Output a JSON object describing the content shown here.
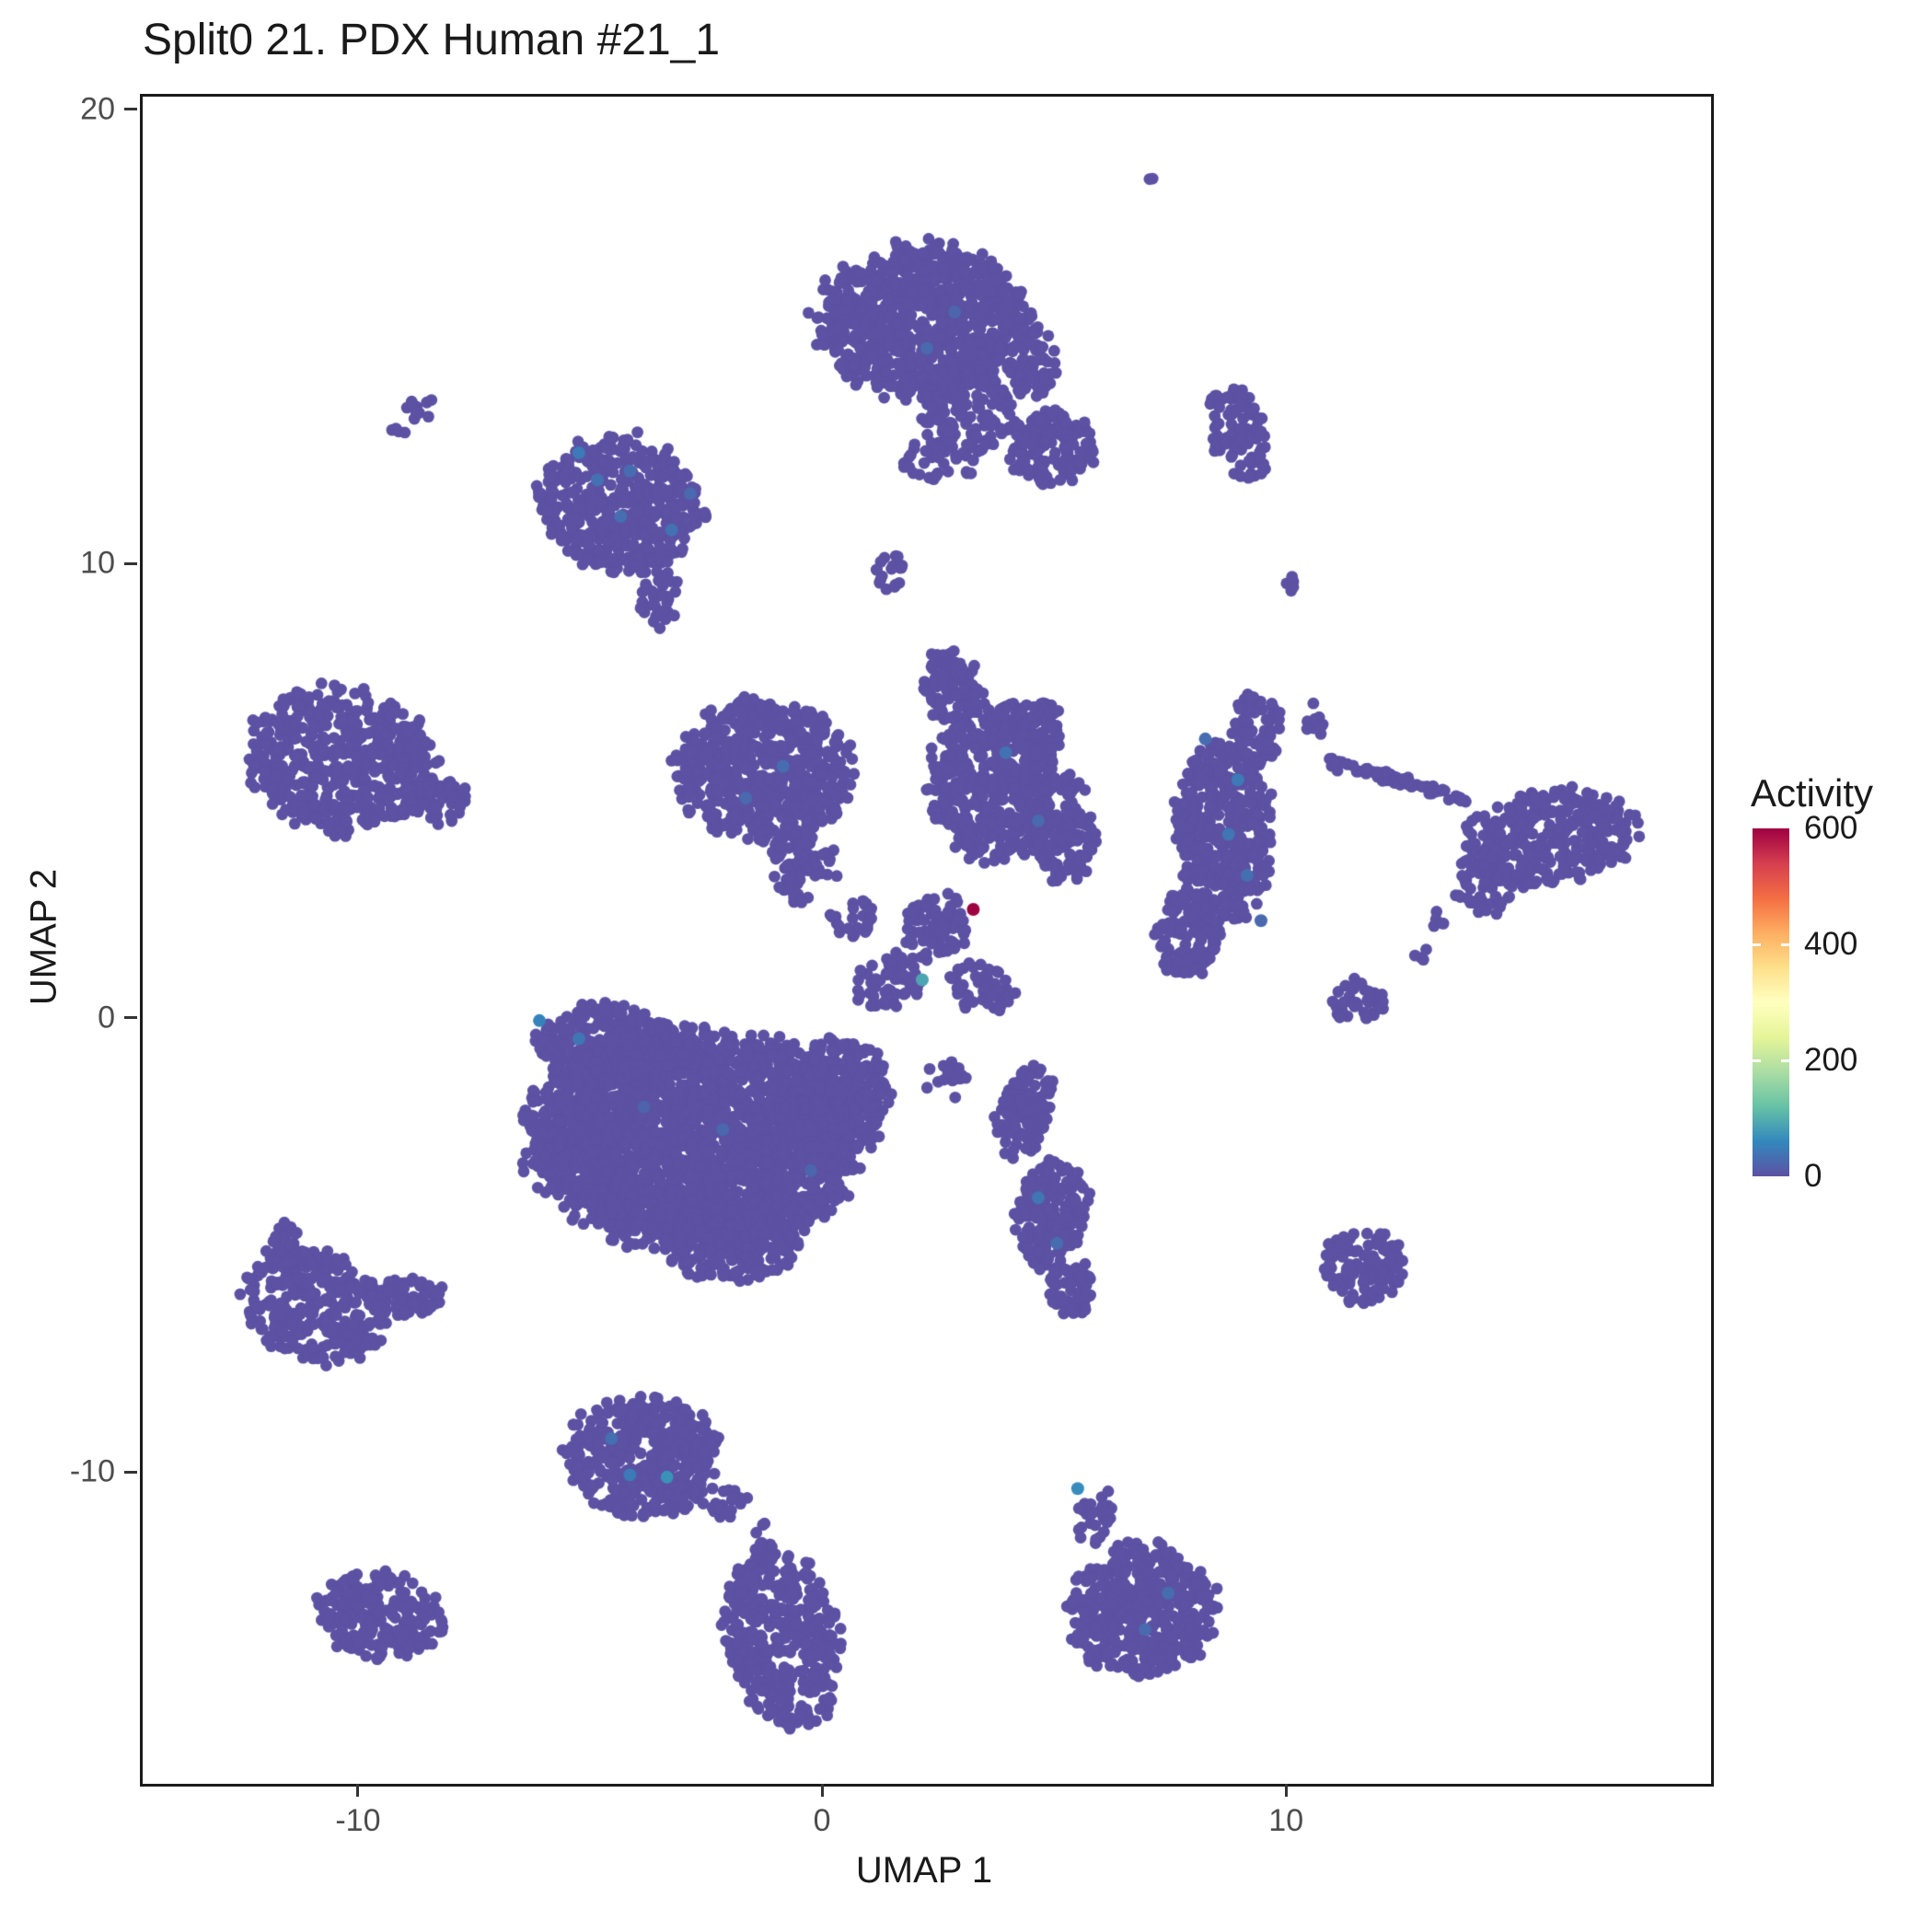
{
  "figure": {
    "title": "Split0 21. PDX Human #21_1"
  },
  "chart_data": {
    "type": "scatter",
    "title": "Split0 21. PDX Human #21_1",
    "xlabel": "UMAP 1",
    "ylabel": "UMAP 2",
    "xlim": [
      -14.7,
      19.1
    ],
    "ylim": [
      -16.8,
      20.34
    ],
    "x_ticks": [
      -10,
      0,
      10
    ],
    "y_ticks": [
      20,
      10,
      0,
      -10
    ],
    "grid": false,
    "panel_border_color": "#1a1a1a",
    "point_color": "#5C51A3",
    "point_radius": 6.4,
    "highlight_radius": 7,
    "legend": {
      "title": "Activity",
      "position": "right",
      "range": [
        0,
        600
      ],
      "ticks": [
        600,
        400,
        200,
        0
      ]
    },
    "colormap": [
      {
        "t": 0.0,
        "color": "#5C51A3"
      },
      {
        "t": 0.1,
        "color": "#3288BD"
      },
      {
        "t": 0.2,
        "color": "#66C2A5"
      },
      {
        "t": 0.3,
        "color": "#ABDDA4"
      },
      {
        "t": 0.4,
        "color": "#E6F598"
      },
      {
        "t": 0.5,
        "color": "#FFFFBF"
      },
      {
        "t": 0.6,
        "color": "#FEE08B"
      },
      {
        "t": 0.7,
        "color": "#FDAE61"
      },
      {
        "t": 0.8,
        "color": "#F46D43"
      },
      {
        "t": 0.9,
        "color": "#D53E4F"
      },
      {
        "t": 1.0,
        "color": "#9E0142"
      }
    ],
    "clusters": [
      {
        "n": 2,
        "x": 7.1,
        "y": 18.6,
        "rx": 0.18,
        "ry": 0.18,
        "rot": 0
      },
      {
        "n": 900,
        "x": 2.1,
        "y": 15.4,
        "rx": 2.3,
        "ry": 1.7,
        "rot": 0
      },
      {
        "n": 160,
        "x": 3.1,
        "y": 13.4,
        "rx": 1.0,
        "ry": 1.0,
        "rot": 0
      },
      {
        "n": 60,
        "x": 4.5,
        "y": 14.5,
        "rx": 0.55,
        "ry": 0.8,
        "rot": 0
      },
      {
        "n": 30,
        "x": 2.5,
        "y": 12.3,
        "rx": 0.9,
        "ry": 0.5,
        "rot": 0
      },
      {
        "n": 150,
        "x": 4.9,
        "y": 12.6,
        "rx": 0.95,
        "ry": 0.8,
        "rot": 0
      },
      {
        "n": 90,
        "x": 8.9,
        "y": 12.9,
        "rx": 0.6,
        "ry": 1.1,
        "rot": 15
      },
      {
        "n": 10,
        "x": -8.6,
        "y": 13.4,
        "rx": 0.45,
        "ry": 0.3,
        "rot": -20
      },
      {
        "n": 4,
        "x": -9.2,
        "y": 13.0,
        "rx": 0.18,
        "ry": 0.15,
        "rot": 0
      },
      {
        "n": 480,
        "x": -4.4,
        "y": 11.4,
        "rx": 1.75,
        "ry": 1.5,
        "rot": -15
      },
      {
        "n": 40,
        "x": -3.6,
        "y": 9.4,
        "rx": 0.45,
        "ry": 0.75,
        "rot": 0
      },
      {
        "n": 18,
        "x": 1.4,
        "y": 9.9,
        "rx": 0.35,
        "ry": 0.55,
        "rot": 20
      },
      {
        "n": 5,
        "x": 10.1,
        "y": 9.6,
        "rx": 0.2,
        "ry": 0.25,
        "rot": 0
      },
      {
        "n": 560,
        "x": -10.4,
        "y": 5.7,
        "rx": 2.1,
        "ry": 1.6,
        "rot": -10
      },
      {
        "n": 40,
        "x": -8.2,
        "y": 4.8,
        "rx": 0.55,
        "ry": 0.5,
        "rot": 0
      },
      {
        "n": 620,
        "x": -1.3,
        "y": 5.5,
        "rx": 1.9,
        "ry": 1.6,
        "rot": 0
      },
      {
        "n": 70,
        "x": -0.6,
        "y": 3.4,
        "rx": 0.55,
        "ry": 0.9,
        "rot": 0
      },
      {
        "n": 480,
        "x": 3.6,
        "y": 5.3,
        "rx": 1.35,
        "ry": 1.8,
        "rot": 0
      },
      {
        "n": 80,
        "x": 2.7,
        "y": 7.4,
        "rx": 0.6,
        "ry": 0.8,
        "rot": 0
      },
      {
        "n": 150,
        "x": 5.1,
        "y": 4.2,
        "rx": 0.75,
        "ry": 1.2,
        "rot": 0
      },
      {
        "n": 60,
        "x": 4.6,
        "y": 6.4,
        "rx": 0.55,
        "ry": 0.65,
        "rot": 0
      },
      {
        "n": 430,
        "x": 8.6,
        "y": 4.2,
        "rx": 1.05,
        "ry": 2.0,
        "rot": 0
      },
      {
        "n": 120,
        "x": 7.8,
        "y": 1.9,
        "rx": 0.7,
        "ry": 1.0,
        "rot": 0
      },
      {
        "n": 70,
        "x": 9.3,
        "y": 6.4,
        "rx": 0.55,
        "ry": 0.85,
        "rot": 0
      },
      {
        "n": 10,
        "x": 10.6,
        "y": 6.6,
        "rx": 0.3,
        "ry": 0.45,
        "rot": 0
      },
      {
        "n": 6,
        "x": 10.9,
        "y": 5.7,
        "rx": 0.18,
        "ry": 0.3,
        "rot": 0
      },
      {
        "n": 60,
        "x": 12.5,
        "y": 5.25,
        "rx": 1.5,
        "ry": 0.13,
        "rot": -17
      },
      {
        "n": 330,
        "x": 15.6,
        "y": 4.0,
        "rx": 1.9,
        "ry": 1.05,
        "rot": 10
      },
      {
        "n": 50,
        "x": 14.2,
        "y": 2.9,
        "rx": 0.65,
        "ry": 0.6,
        "rot": 0
      },
      {
        "n": 5,
        "x": 13.2,
        "y": 2.2,
        "rx": 0.2,
        "ry": 0.2,
        "rot": 0
      },
      {
        "n": 4,
        "x": 12.9,
        "y": 1.4,
        "rx": 0.2,
        "ry": 0.2,
        "rot": 0
      },
      {
        "n": 40,
        "x": 11.5,
        "y": 0.45,
        "rx": 0.6,
        "ry": 0.5,
        "rot": 0
      },
      {
        "n": 2400,
        "x": -2.8,
        "y": -2.6,
        "rx": 3.6,
        "ry": 2.4,
        "rot": 0
      },
      {
        "n": 300,
        "x": -4.7,
        "y": -0.5,
        "rx": 1.5,
        "ry": 0.9,
        "rot": 0
      },
      {
        "n": 250,
        "x": 0.4,
        "y": -1.6,
        "rx": 1.05,
        "ry": 1.25,
        "rot": 0
      },
      {
        "n": 200,
        "x": -2.0,
        "y": -4.9,
        "rx": 1.5,
        "ry": 0.85,
        "rot": 0
      },
      {
        "n": 60,
        "x": 1.4,
        "y": 0.9,
        "rx": 0.9,
        "ry": 0.6,
        "rot": 25
      },
      {
        "n": 80,
        "x": 2.4,
        "y": 2.1,
        "rx": 0.7,
        "ry": 0.7,
        "rot": 0
      },
      {
        "n": 25,
        "x": 0.6,
        "y": 2.3,
        "rx": 0.5,
        "ry": 0.5,
        "rot": 0
      },
      {
        "n": 8,
        "x": 0.1,
        "y": 3.5,
        "rx": 0.22,
        "ry": 0.45,
        "rot": 0
      },
      {
        "n": 50,
        "x": 3.4,
        "y": 0.7,
        "rx": 0.75,
        "ry": 0.55,
        "rot": -20
      },
      {
        "n": 15,
        "x": 2.6,
        "y": -1.3,
        "rx": 0.45,
        "ry": 0.5,
        "rot": 0
      },
      {
        "n": 120,
        "x": 4.3,
        "y": -2.0,
        "rx": 0.6,
        "ry": 1.05,
        "rot": -15
      },
      {
        "n": 200,
        "x": 4.9,
        "y": -4.2,
        "rx": 0.75,
        "ry": 1.25,
        "rot": -10
      },
      {
        "n": 60,
        "x": 5.3,
        "y": -5.9,
        "rx": 0.5,
        "ry": 0.65,
        "rot": 0
      },
      {
        "n": 290,
        "x": -11.0,
        "y": -6.3,
        "rx": 1.55,
        "ry": 1.2,
        "rot": -20
      },
      {
        "n": 60,
        "x": -9.0,
        "y": -6.1,
        "rx": 0.85,
        "ry": 0.45,
        "rot": 10
      },
      {
        "n": 30,
        "x": -11.7,
        "y": -4.9,
        "rx": 0.4,
        "ry": 0.5,
        "rot": 0
      },
      {
        "n": 430,
        "x": -3.9,
        "y": -9.6,
        "rx": 1.7,
        "ry": 1.35,
        "rot": 0
      },
      {
        "n": 20,
        "x": -2.1,
        "y": -10.6,
        "rx": 0.45,
        "ry": 0.4,
        "rot": 0
      },
      {
        "n": 120,
        "x": 11.6,
        "y": -5.4,
        "rx": 0.9,
        "ry": 0.85,
        "rot": 15
      },
      {
        "n": 430,
        "x": -0.9,
        "y": -13.6,
        "rx": 1.25,
        "ry": 2.0,
        "rot": 12
      },
      {
        "n": 6,
        "x": -1.3,
        "y": -11.3,
        "rx": 0.2,
        "ry": 0.3,
        "rot": 0
      },
      {
        "n": 240,
        "x": -9.6,
        "y": -13.1,
        "rx": 1.35,
        "ry": 0.95,
        "rot": -10
      },
      {
        "n": 480,
        "x": 6.8,
        "y": -13.0,
        "rx": 1.65,
        "ry": 1.45,
        "rot": 0
      },
      {
        "n": 30,
        "x": 5.8,
        "y": -10.9,
        "rx": 0.4,
        "ry": 0.65,
        "rot": -15
      }
    ],
    "highlight_points": [
      {
        "x": 3.2,
        "y": 2.45,
        "v": 600
      },
      {
        "x": 2.1,
        "y": 0.9,
        "v": 90
      },
      {
        "x": -3.4,
        "y": -10.05,
        "v": 70
      },
      {
        "x": 5.45,
        "y": -10.3,
        "v": 65
      },
      {
        "x": -6.15,
        "y": 0.0,
        "v": 55
      },
      {
        "x": -5.3,
        "y": -0.4,
        "v": 40
      },
      {
        "x": -5.3,
        "y": 12.5,
        "v": 45
      },
      {
        "x": -4.9,
        "y": 11.9,
        "v": 35
      },
      {
        "x": -4.4,
        "y": 11.1,
        "v": 32
      },
      {
        "x": -3.3,
        "y": 10.8,
        "v": 36
      },
      {
        "x": -2.9,
        "y": 11.6,
        "v": 26
      },
      {
        "x": -4.2,
        "y": 12.1,
        "v": 30
      },
      {
        "x": 8.9,
        "y": 5.3,
        "v": 46
      },
      {
        "x": 8.7,
        "y": 4.1,
        "v": 40
      },
      {
        "x": 9.1,
        "y": 3.2,
        "v": 34
      },
      {
        "x": 8.2,
        "y": 6.2,
        "v": 30
      },
      {
        "x": 9.4,
        "y": 2.2,
        "v": 26
      },
      {
        "x": -0.9,
        "y": 5.6,
        "v": 30
      },
      {
        "x": -1.7,
        "y": 4.9,
        "v": 26
      },
      {
        "x": 3.9,
        "y": 5.9,
        "v": 36
      },
      {
        "x": 4.6,
        "y": 4.4,
        "v": 26
      },
      {
        "x": -4.6,
        "y": -9.2,
        "v": 34
      },
      {
        "x": -4.2,
        "y": -10.0,
        "v": 46
      },
      {
        "x": 7.4,
        "y": -12.6,
        "v": 30
      },
      {
        "x": 6.9,
        "y": -13.4,
        "v": 26
      },
      {
        "x": 4.6,
        "y": -3.9,
        "v": 40
      },
      {
        "x": 5.0,
        "y": -4.9,
        "v": 30
      },
      {
        "x": -2.2,
        "y": -2.4,
        "v": 24
      },
      {
        "x": -3.9,
        "y": -1.9,
        "v": 20
      },
      {
        "x": -0.3,
        "y": -3.3,
        "v": 22
      },
      {
        "x": 2.2,
        "y": 14.8,
        "v": 26
      },
      {
        "x": 2.8,
        "y": 15.6,
        "v": 22
      }
    ]
  }
}
